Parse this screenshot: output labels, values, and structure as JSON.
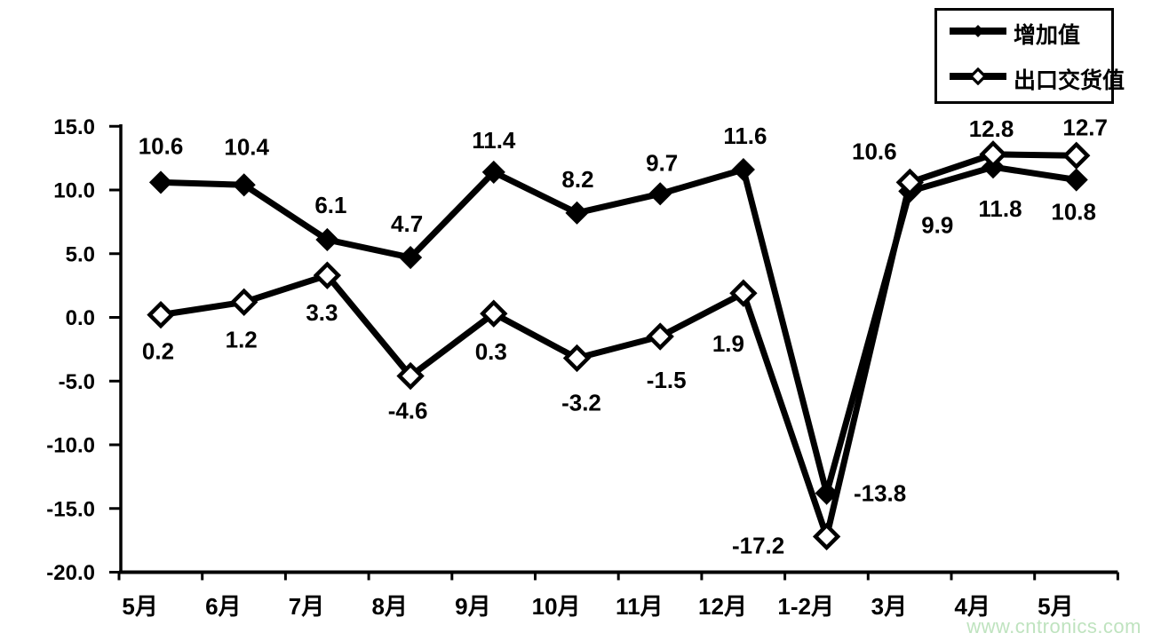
{
  "chart_data": {
    "type": "line",
    "categories": [
      "5月",
      "6月",
      "7月",
      "8月",
      "9月",
      "10月",
      "11月",
      "12月",
      "1-2月",
      "3月",
      "4月",
      "5月"
    ],
    "series": [
      {
        "name": "增加值",
        "marker": "filled-diamond",
        "color": "#000000",
        "values": [
          10.6,
          10.4,
          6.1,
          4.7,
          11.4,
          8.2,
          9.7,
          11.6,
          -13.8,
          9.9,
          11.8,
          10.8
        ],
        "labels": [
          "10.6",
          "10.4",
          "6.1",
          "4.7",
          "11.4",
          "8.2",
          "9.7",
          "11.6",
          "-13.8",
          "9.9",
          "11.8",
          "10.8"
        ],
        "label_offsets": [
          [
            0,
            -41
          ],
          [
            3,
            -43
          ],
          [
            4,
            -39
          ],
          [
            -4,
            -38
          ],
          [
            0,
            -36
          ],
          [
            1,
            -38
          ],
          [
            2,
            -35
          ],
          [
            2,
            -38
          ],
          [
            60,
            0
          ],
          [
            31,
            38
          ],
          [
            8,
            47
          ],
          [
            -3,
            36
          ]
        ]
      },
      {
        "name": "出口交货值",
        "marker": "open-diamond",
        "color": "#000000",
        "values": [
          0.2,
          1.2,
          3.3,
          -4.6,
          0.3,
          -3.2,
          -1.5,
          1.9,
          -17.2,
          10.6,
          12.8,
          12.7
        ],
        "labels": [
          "0.2",
          "1.2",
          "3.3",
          "-4.6",
          "0.3",
          "-3.2",
          "-1.5",
          "1.9",
          "-17.2",
          "10.6",
          "12.8",
          "12.7"
        ],
        "label_offsets": [
          [
            -3,
            41
          ],
          [
            -3,
            42
          ],
          [
            -6,
            42
          ],
          [
            -3,
            39
          ],
          [
            -3,
            43
          ],
          [
            5,
            50
          ],
          [
            7,
            49
          ],
          [
            -17,
            57
          ],
          [
            -77,
            10
          ],
          [
            -40,
            -35
          ],
          [
            -2,
            -29
          ],
          [
            10,
            -32
          ]
        ]
      }
    ],
    "y_axis": {
      "min": -20.0,
      "max": 15.0,
      "step": 5.0,
      "tick_labels": [
        "15.0",
        "10.0",
        "5.0",
        "0.0",
        "-5.0",
        "-10.0",
        "-15.0",
        "-20.0"
      ]
    },
    "xlabel": "",
    "ylabel": "",
    "title": "",
    "grid": false,
    "legend_position": "top-right",
    "axis_color": "#000000",
    "line_color": "#000000",
    "background": "#ffffff"
  },
  "legend": {
    "items": [
      {
        "label": "增加值",
        "icon": "filled-diamond-line"
      },
      {
        "label": "出口交货值",
        "icon": "open-diamond-line"
      }
    ]
  },
  "watermark": {
    "text": "www.cntronics.com",
    "color": "#bfe3bf"
  }
}
